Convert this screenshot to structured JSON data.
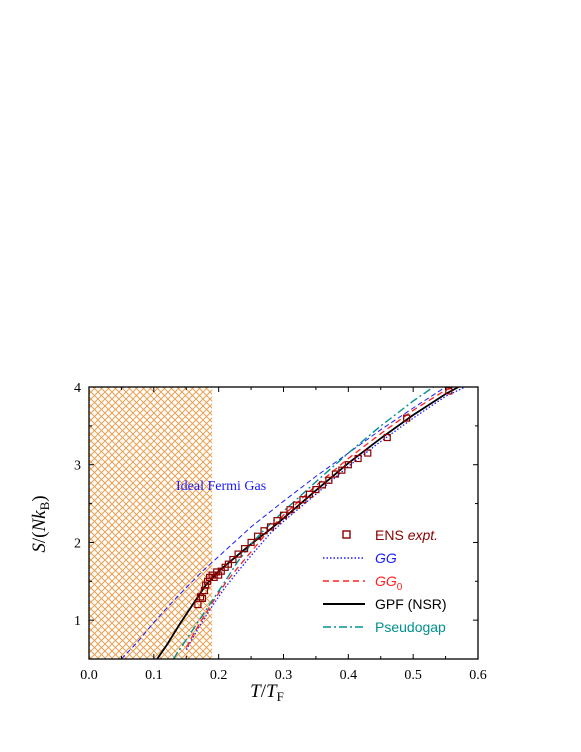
{
  "colors": {
    "hatch": "#e8a050",
    "ens": "#8b0000",
    "gg": "#1a1aff",
    "gg0": "#ff2020",
    "gpf": "#000000",
    "pseudogap": "#009090",
    "ideal": "#1a1aff"
  },
  "chart_data": {
    "type": "line",
    "title": "",
    "xlabel": "T/T_F",
    "ylabel": "S/(Nk_B)",
    "xlim": [
      0.0,
      0.6
    ],
    "ylim": [
      0.5,
      4.0
    ],
    "xticks": [
      0.0,
      0.1,
      0.2,
      0.3,
      0.4,
      0.5,
      0.6
    ],
    "yticks": [
      1,
      2,
      3,
      4
    ],
    "xtick_labels": [
      "0.0",
      "0.1",
      "0.2",
      "0.3",
      "0.4",
      "0.5",
      "0.6"
    ],
    "ytick_labels": [
      "1",
      "2",
      "3",
      "4"
    ],
    "shaded_region": {
      "x": [
        0.0,
        0.19
      ],
      "pattern": "crosshatch"
    },
    "annotation": "Ideal Fermi Gas",
    "legend": {
      "placement": "lower-right",
      "entries": [
        {
          "label": "ENS ",
          "label_italic": "expt.",
          "style": "square-marker"
        },
        {
          "label": "",
          "label_italic": "GG",
          "style": "dotted"
        },
        {
          "label": "",
          "label_italic": "GG",
          "subscript": "0",
          "style": "dashed"
        },
        {
          "label": "GPF (NSR)",
          "label_italic": "",
          "style": "solid"
        },
        {
          "label": "Pseudogap",
          "label_italic": "",
          "style": "dash-dot"
        }
      ]
    },
    "series": [
      {
        "name": "Ideal Fermi Gas",
        "style": "dashed-ideal",
        "x": [
          0.05,
          0.075,
          0.1,
          0.125,
          0.15,
          0.175,
          0.2,
          0.25,
          0.3,
          0.35,
          0.4,
          0.45,
          0.5,
          0.55
        ],
        "y": [
          0.5,
          0.72,
          0.97,
          1.2,
          1.42,
          1.63,
          1.82,
          2.2,
          2.53,
          2.85,
          3.15,
          3.45,
          3.73,
          4.0
        ]
      },
      {
        "name": "GG",
        "style": "dotted",
        "x": [
          0.15,
          0.17,
          0.19,
          0.21,
          0.23,
          0.25,
          0.28,
          0.3,
          0.35,
          0.4,
          0.45,
          0.5,
          0.55,
          0.58
        ],
        "y": [
          0.62,
          0.92,
          1.18,
          1.42,
          1.63,
          1.83,
          2.12,
          2.27,
          2.62,
          2.98,
          3.3,
          3.6,
          3.88,
          4.0
        ]
      },
      {
        "name": "GG_0",
        "style": "dashed",
        "x": [
          0.15,
          0.17,
          0.19,
          0.21,
          0.23,
          0.25,
          0.28,
          0.3,
          0.35,
          0.4,
          0.45,
          0.5,
          0.55,
          0.565
        ],
        "y": [
          0.65,
          0.95,
          1.22,
          1.47,
          1.68,
          1.88,
          2.18,
          2.35,
          2.73,
          3.08,
          3.4,
          3.7,
          3.96,
          4.0
        ]
      },
      {
        "name": "GPF (NSR)",
        "style": "solid",
        "x": [
          0.105,
          0.12,
          0.14,
          0.16,
          0.18,
          0.2,
          0.22,
          0.25,
          0.28,
          0.3,
          0.35,
          0.4,
          0.45,
          0.5,
          0.55,
          0.57
        ],
        "y": [
          0.5,
          0.68,
          0.95,
          1.2,
          1.45,
          1.63,
          1.77,
          1.98,
          2.17,
          2.31,
          2.67,
          3.02,
          3.34,
          3.64,
          3.91,
          4.0
        ]
      },
      {
        "name": "Pseudogap",
        "style": "dash-dot",
        "x": [
          0.13,
          0.15,
          0.17,
          0.19,
          0.21,
          0.23,
          0.25,
          0.27,
          0.3,
          0.35,
          0.4,
          0.45,
          0.5,
          0.54
        ],
        "y": [
          0.5,
          0.75,
          1.0,
          1.25,
          1.5,
          1.76,
          1.98,
          2.16,
          2.4,
          2.78,
          3.15,
          3.5,
          3.82,
          4.05
        ]
      },
      {
        "name": "ENS expt.",
        "style": "markers",
        "x": [
          0.168,
          0.172,
          0.175,
          0.178,
          0.18,
          0.183,
          0.186,
          0.19,
          0.193,
          0.197,
          0.2,
          0.204,
          0.21,
          0.215,
          0.222,
          0.23,
          0.24,
          0.25,
          0.26,
          0.27,
          0.28,
          0.29,
          0.3,
          0.31,
          0.32,
          0.33,
          0.34,
          0.35,
          0.36,
          0.37,
          0.38,
          0.39,
          0.4,
          0.415,
          0.43,
          0.46,
          0.49,
          0.555
        ],
        "y": [
          1.2,
          1.3,
          1.28,
          1.38,
          1.45,
          1.5,
          1.55,
          1.58,
          1.55,
          1.62,
          1.58,
          1.63,
          1.68,
          1.72,
          1.78,
          1.85,
          1.92,
          2.0,
          2.08,
          2.15,
          2.2,
          2.28,
          2.35,
          2.42,
          2.48,
          2.55,
          2.62,
          2.68,
          2.74,
          2.8,
          2.88,
          2.93,
          3.0,
          3.08,
          3.15,
          3.35,
          3.6,
          3.95
        ]
      }
    ]
  }
}
